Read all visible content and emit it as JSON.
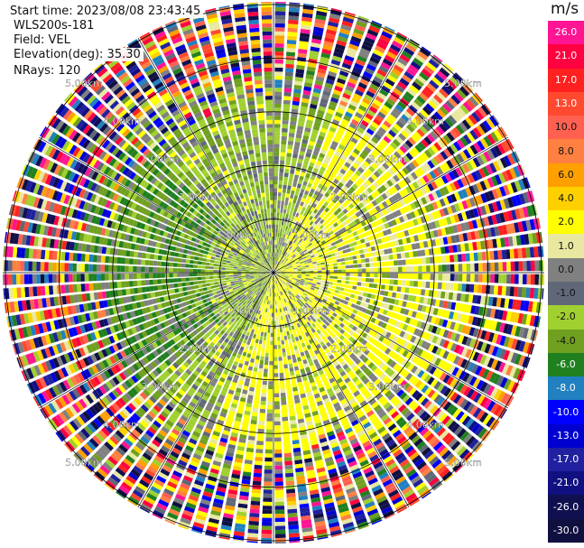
{
  "info": {
    "start_time": "Start time: 2023/08/08 23:43:45",
    "site": "WLS200s-181",
    "field": "Field: VEL",
    "elevation": "Elevation(deg): 35.30",
    "nrays": "NRays: 120"
  },
  "colorbar": {
    "unit": "m/s",
    "labels": [
      "26.0",
      "21.0",
      "17.0",
      "13.0",
      "10.0",
      "8.0",
      "6.0",
      "4.0",
      "2.0",
      "1.0",
      "0.0",
      "-1.0",
      "-2.0",
      "-4.0",
      "-6.0",
      "-8.0",
      "-10.0",
      "-13.0",
      "-17.0",
      "-21.0",
      "-26.0",
      "-30.0"
    ],
    "colors": [
      "#ff1493",
      "#ff0040",
      "#ff2020",
      "#ff4a30",
      "#ff6050",
      "#ff8040",
      "#ffa000",
      "#ffd000",
      "#ffff00",
      "#e8e8a0",
      "#808080",
      "#606878",
      "#a0d030",
      "#70a020",
      "#208020",
      "#2080c0",
      "#0000ff",
      "#0000d0",
      "#2020a0",
      "#101080",
      "#101050",
      "#101040"
    ]
  },
  "chart_data": {
    "type": "ppi",
    "title": "",
    "nrays": 120,
    "range_ring_labels": [
      "1.00km",
      "2.00km",
      "3.00km",
      "4.00km",
      "5.00km"
    ],
    "range_rings_km": [
      1,
      2,
      3,
      4,
      5
    ],
    "max_range_km": 5.05,
    "field": "VEL",
    "value_range": [
      -30,
      26
    ]
  }
}
